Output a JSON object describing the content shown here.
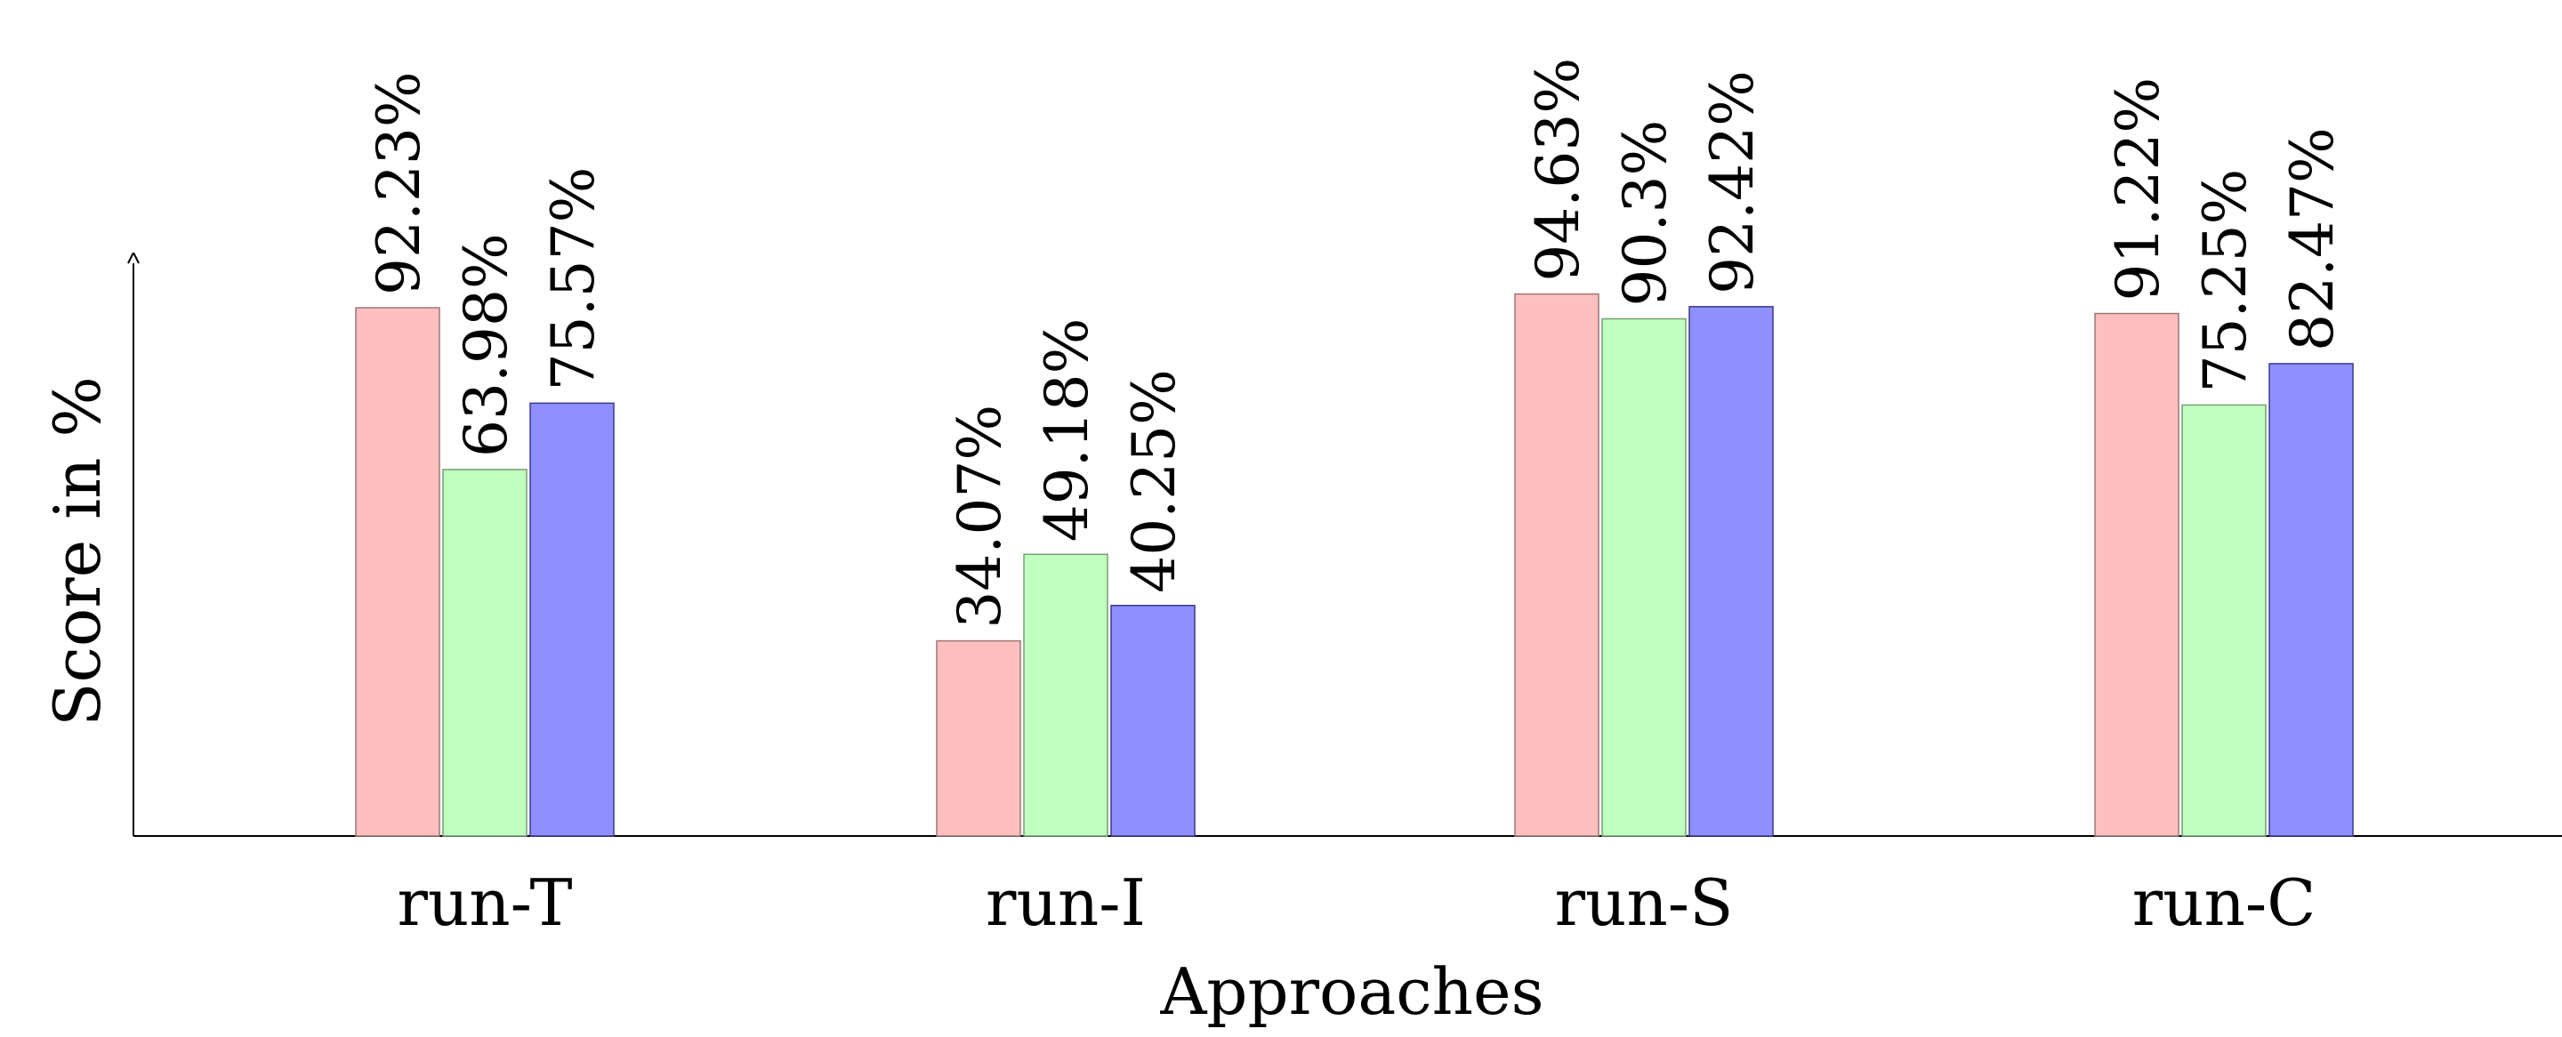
{
  "chart_data": {
    "type": "bar",
    "xlabel": "Approaches",
    "ylabel": "Score in %",
    "categories": [
      "run-T",
      "run-I",
      "run-S",
      "run-C"
    ],
    "series": [
      {
        "values": [
          92.23,
          34.07,
          94.63,
          91.22
        ],
        "labels": [
          "92.23%",
          "34.07%",
          "94.63%",
          "91.22%"
        ],
        "fill": "#ffbfbf",
        "stroke": "#9e7676"
      },
      {
        "values": [
          63.98,
          49.18,
          90.3,
          75.25
        ],
        "labels": [
          "63.98%",
          "49.18%",
          "90.3%",
          "75.25%"
        ],
        "fill": "#bfffbf",
        "stroke": "#769e76"
      },
      {
        "values": [
          75.57,
          40.25,
          92.42,
          82.47
        ],
        "labels": [
          "75.57%",
          "40.25%",
          "92.42%",
          "82.47%"
        ],
        "fill": "#8f8fff",
        "stroke": "#3a3a8c"
      }
    ],
    "ylim": [
      0,
      100
    ],
    "grid": false,
    "legend": "none"
  }
}
